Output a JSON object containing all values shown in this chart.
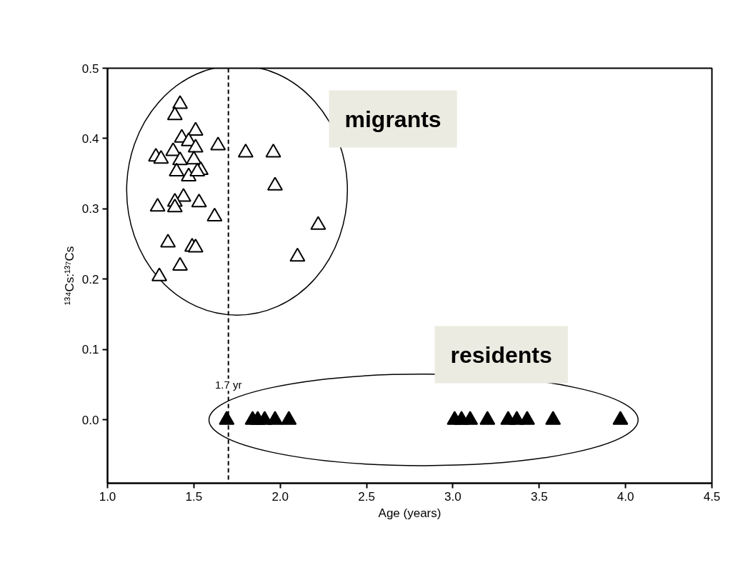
{
  "chart_data": {
    "type": "scatter",
    "xlabel": "Age (years)",
    "ylabel": "¹³⁴Cs:¹³⁷Cs",
    "xlim": [
      1.0,
      4.5
    ],
    "ylim": [
      -0.09,
      0.5
    ],
    "xticks": [
      {
        "value": 1.0,
        "label": "1.0"
      },
      1.5,
      {
        "value": 2.0,
        "label": "2.0"
      },
      2.5,
      {
        "value": 3.0,
        "label": "3.0"
      },
      3.5,
      {
        "value": 4.0,
        "label": "4.0"
      },
      4.5
    ],
    "yticks": [
      {
        "value": 0.0,
        "label": "0.0"
      },
      0.1,
      0.2,
      0.3,
      0.4,
      0.5
    ],
    "grid": false,
    "marker": "triangle",
    "series": [
      {
        "color": "#ffffff",
        "x": [
          1.42,
          1.39,
          1.51,
          1.43,
          1.47,
          1.51,
          1.64,
          1.8,
          1.96,
          1.38,
          1.28,
          1.31,
          1.42,
          1.5,
          1.4,
          1.47,
          1.54,
          1.52,
          1.97,
          1.44,
          1.39,
          1.29,
          1.39,
          1.53,
          1.62,
          2.22,
          1.35,
          1.49,
          1.51,
          1.42,
          2.1,
          1.3
        ],
        "values": [
          0.449,
          0.433,
          0.411,
          0.401,
          0.396,
          0.387,
          0.39,
          0.38,
          0.38,
          0.382,
          0.374,
          0.371,
          0.369,
          0.37,
          0.353,
          0.346,
          0.355,
          0.353,
          0.333,
          0.317,
          0.31,
          0.303,
          0.302,
          0.309,
          0.289,
          0.277,
          0.252,
          0.246,
          0.245,
          0.219,
          0.232,
          0.204
        ]
      },
      {
        "color": "#000000",
        "x": [
          1.69,
          1.84,
          1.87,
          1.91,
          1.97,
          2.05,
          3.01,
          3.05,
          3.1,
          3.2,
          3.32,
          3.37,
          3.43,
          3.58,
          3.97
        ],
        "values": [
          0,
          0,
          0,
          0,
          0,
          0,
          0,
          0,
          0,
          0,
          0,
          0,
          0,
          0,
          0
        ]
      }
    ],
    "ref_lines": [
      {
        "axis": "x",
        "value": 1.7,
        "label": "1.7 yr",
        "line_style": "dashed",
        "color": "#000000"
      }
    ],
    "annotations": [
      "migrants",
      "residents"
    ]
  }
}
